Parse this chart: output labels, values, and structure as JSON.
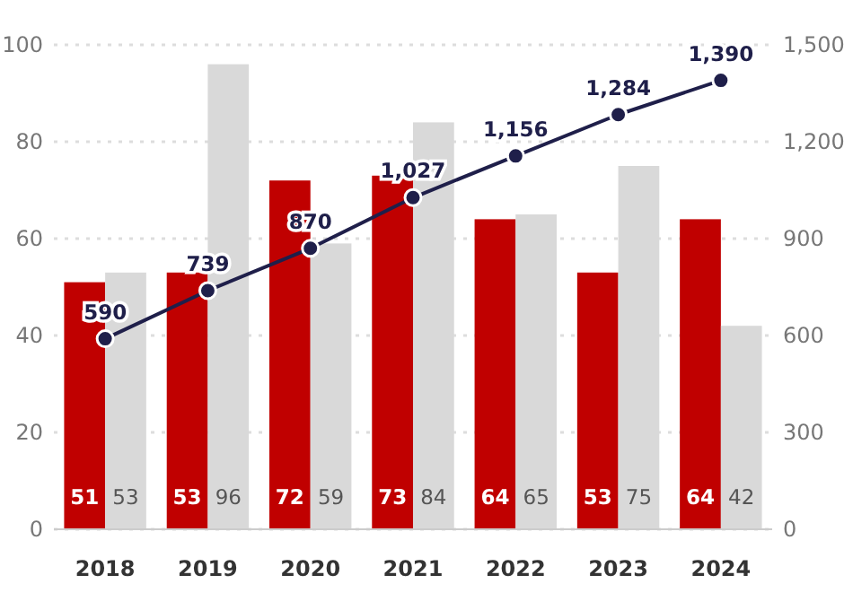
{
  "chart_data": {
    "type": "bar",
    "categories": [
      "2018",
      "2019",
      "2020",
      "2021",
      "2022",
      "2023",
      "2024"
    ],
    "series": [
      {
        "color": "#c00000",
        "values": [
          51,
          53,
          72,
          73,
          64,
          53,
          64
        ]
      },
      {
        "color": "#d9d9d9",
        "values": [
          53,
          96,
          59,
          84,
          65,
          75,
          42
        ]
      },
      {
        "type": "line",
        "axis": "y2",
        "color": "#1f1f4a",
        "values": [
          590,
          739,
          870,
          1027,
          1156,
          1284,
          1390
        ],
        "value_labels": [
          "590",
          "739",
          "870",
          "1,027",
          "1,156",
          "1,284",
          "1,390"
        ]
      }
    ],
    "ylim": [
      0,
      100
    ],
    "yticks": [
      0,
      20,
      40,
      60,
      80,
      100
    ],
    "y2lim": [
      0,
      1500
    ],
    "y2ticks": [
      0,
      {
        "value": 300,
        "label": "300"
      },
      {
        "value": 600,
        "label": "600"
      },
      {
        "value": 900,
        "label": "900"
      },
      {
        "value": 1200,
        "label": "1,200"
      },
      {
        "value": 1500,
        "label": "1,500"
      }
    ],
    "grid": "y",
    "data_labels": true,
    "marker": "circle",
    "line_style": "solid"
  }
}
